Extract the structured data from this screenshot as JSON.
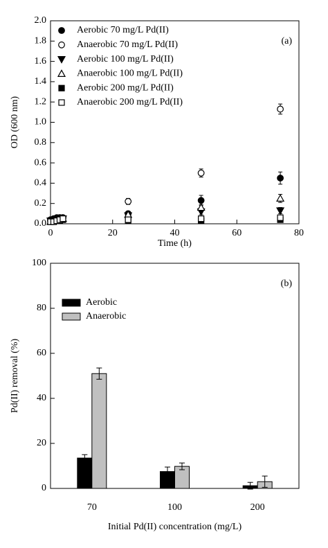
{
  "chart_data": [
    {
      "type": "scatter",
      "annotation": "(a)",
      "x_label": "Time (h)",
      "y_label": "OD (600 nm)",
      "xlim": [
        0,
        80
      ],
      "xticks": [
        0,
        20,
        40,
        60,
        80
      ],
      "ylim": [
        0,
        2
      ],
      "yticks": [
        {
          "value": 0,
          "label": "0.0"
        },
        0.2,
        0.4,
        0.6,
        0.8,
        {
          "value": 1,
          "label": "1.0"
        },
        1.2,
        1.4,
        1.6,
        1.8,
        {
          "value": 2,
          "label": "2.0"
        }
      ],
      "legend": "upper left",
      "x": [
        0,
        1,
        2,
        3,
        4,
        25,
        48.5,
        74
      ],
      "series": [
        {
          "name": "Aerobic 70 mg/L Pd(II)",
          "color": "#000000",
          "marker": "circle",
          "filled": true,
          "values": [
            0.04,
            0.05,
            0.06,
            0.06,
            0.06,
            0.1,
            0.23,
            0.45
          ],
          "errors": [
            0.01,
            0.01,
            0.02,
            0.02,
            0.02,
            0.02,
            0.05,
            0.06
          ]
        },
        {
          "name": "Anaerobic 70 mg/L Pd(II)",
          "color": "#000000",
          "marker": "circle",
          "filled": false,
          "values": [
            0.03,
            0.04,
            0.05,
            0.06,
            0.06,
            0.22,
            0.5,
            1.13
          ],
          "errors": [
            0.01,
            0.01,
            0.02,
            0.02,
            0.02,
            0.03,
            0.04,
            0.05
          ]
        },
        {
          "name": "Aerobic 100 mg/L Pd(II)",
          "color": "#000000",
          "marker": "triangle-down",
          "filled": true,
          "values": [
            0.03,
            0.04,
            0.05,
            0.06,
            0.05,
            0.08,
            0.12,
            0.13
          ],
          "errors": [
            0.01,
            0.01,
            0.02,
            0.02,
            0.02,
            0.02,
            0.03,
            0.03
          ]
        },
        {
          "name": "Anaerobic 100 mg/L Pd(II)",
          "color": "#000000",
          "marker": "triangle-up",
          "filled": false,
          "values": [
            0.02,
            0.03,
            0.04,
            0.05,
            0.05,
            0.09,
            0.16,
            0.25
          ],
          "errors": [
            0.01,
            0.01,
            0.02,
            0.02,
            0.02,
            0.02,
            0.03,
            0.04
          ]
        },
        {
          "name": "Aerobic 200 mg/L Pd(II)",
          "color": "#000000",
          "marker": "square",
          "filled": true,
          "values": [
            0.02,
            0.02,
            0.03,
            0.03,
            0.04,
            0.03,
            0.03,
            0.04
          ],
          "errors": [
            0.01,
            0.01,
            0.01,
            0.01,
            0.01,
            0.01,
            0.01,
            0.01
          ]
        },
        {
          "name": "Anaerobic 200 mg/L Pd(II)",
          "color": "#000000",
          "marker": "square",
          "filled": false,
          "values": [
            0.02,
            0.02,
            0.03,
            0.04,
            0.05,
            0.04,
            0.05,
            0.06
          ],
          "errors": [
            0.01,
            0.01,
            0.01,
            0.02,
            0.02,
            0.01,
            0.02,
            0.02
          ]
        }
      ]
    },
    {
      "type": "bar",
      "annotation": "(b)",
      "x_label": "Initial Pd(II) concentration (mg/L)",
      "y_label": "Pd(II) removal (%)",
      "ylim": [
        0,
        100
      ],
      "yticks": [
        0,
        20,
        40,
        60,
        80,
        100
      ],
      "legend": "upper left",
      "categories": [
        "70",
        "100",
        "200"
      ],
      "series": [
        {
          "name": "Aerobic",
          "color": "#000000",
          "values": [
            13.5,
            7.5,
            1.2
          ],
          "errors": [
            1.5,
            2,
            1.5
          ]
        },
        {
          "name": "Anaerobic",
          "color": "#c0c0c0",
          "values": [
            51,
            9.8,
            3
          ],
          "errors": [
            2.5,
            1.5,
            2.5
          ]
        }
      ]
    }
  ]
}
